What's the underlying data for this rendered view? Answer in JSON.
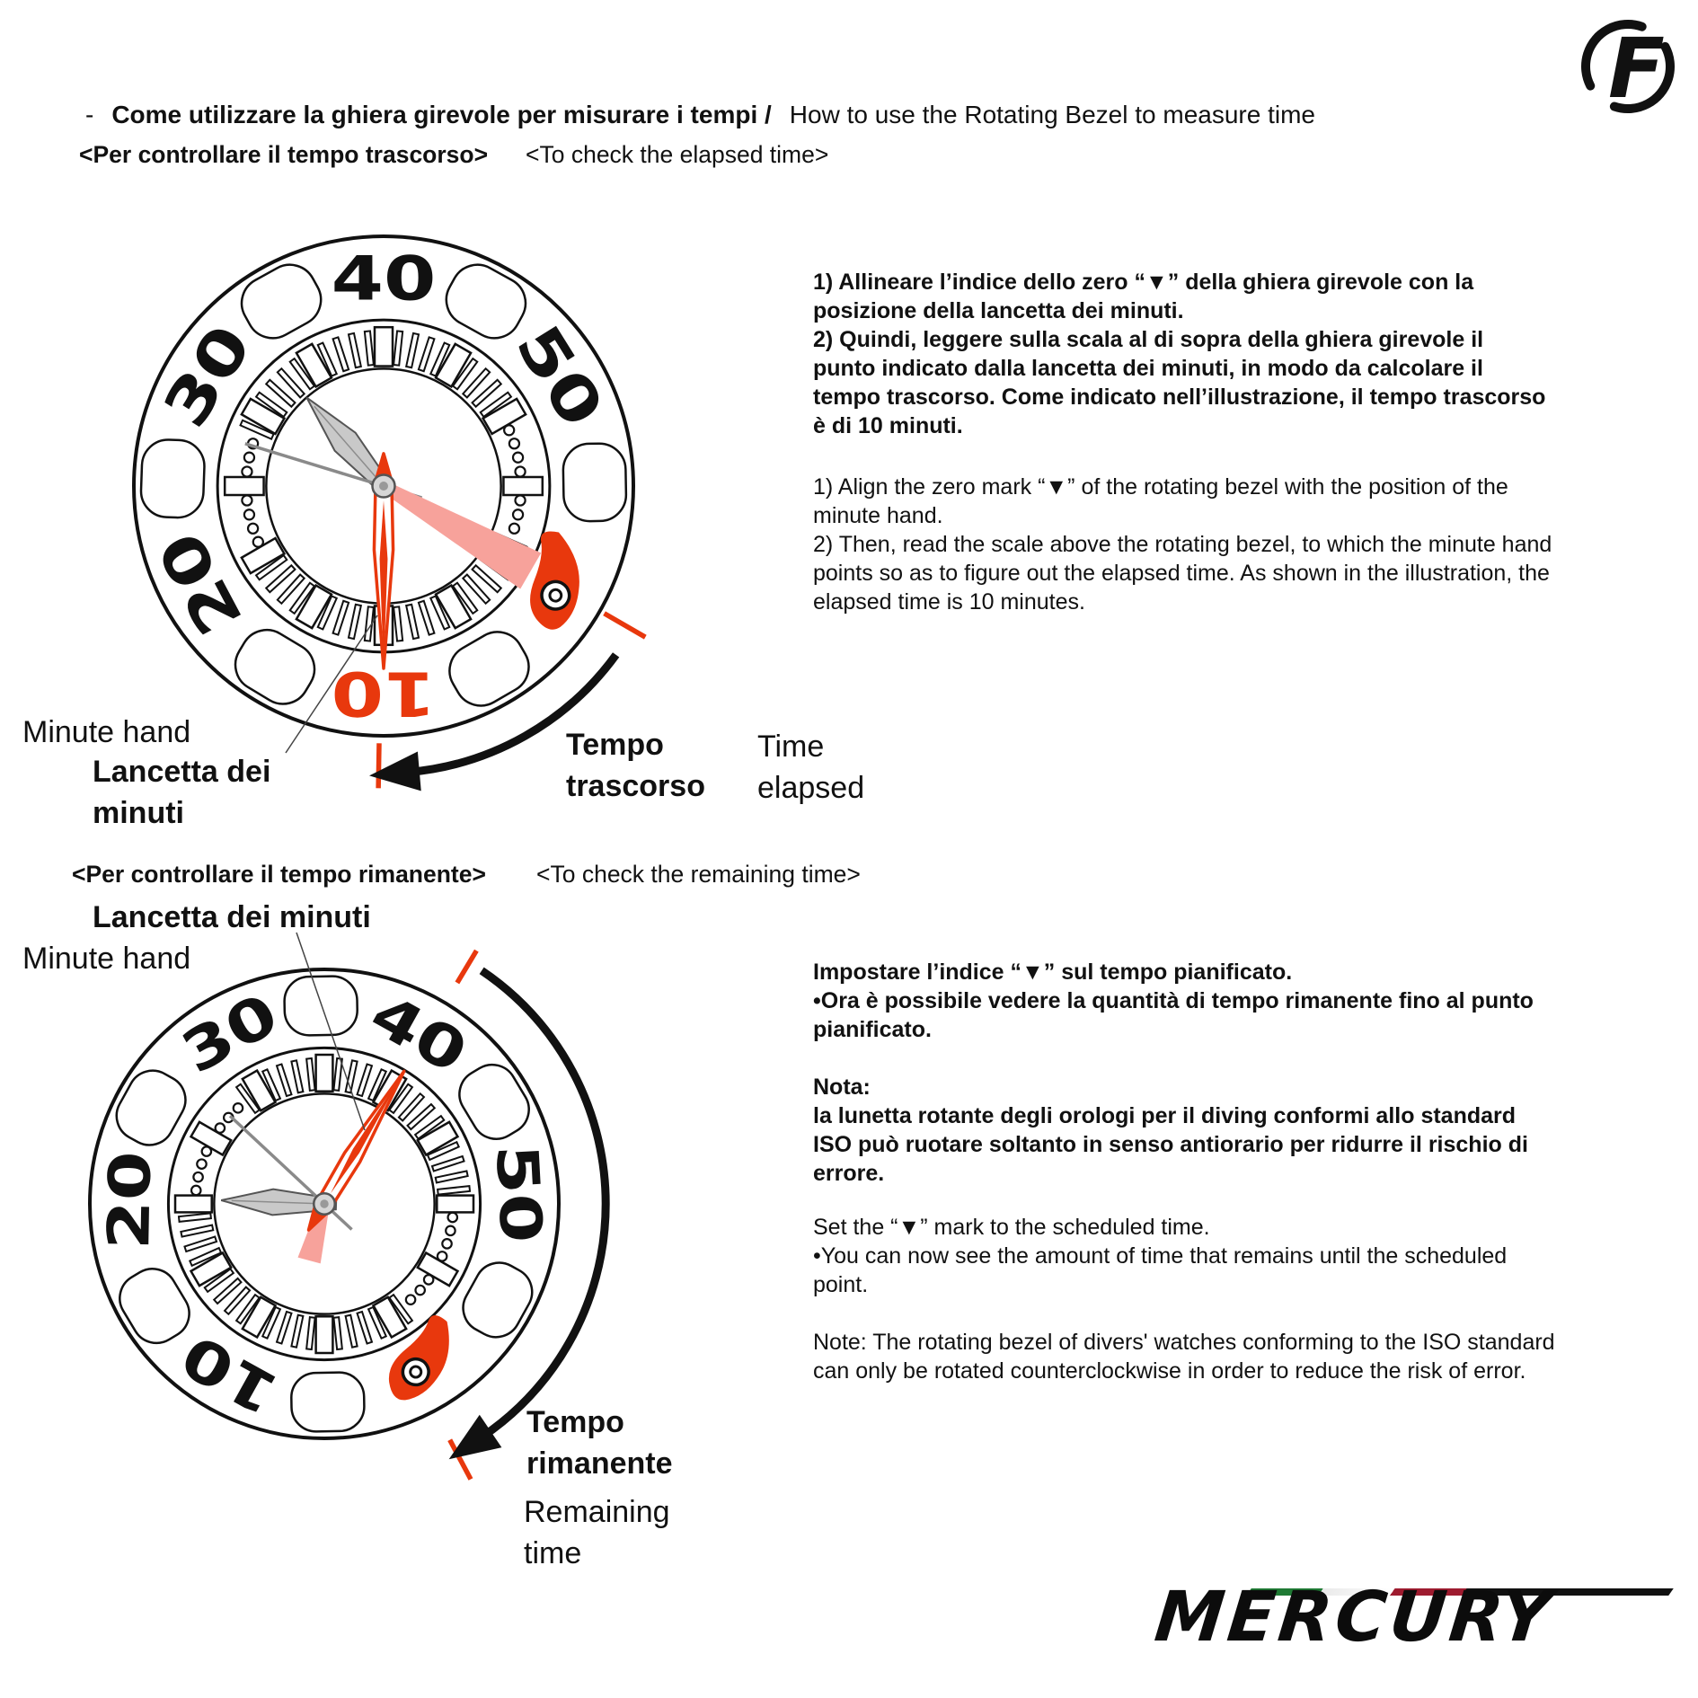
{
  "colors": {
    "red": "#E8380D",
    "pink": "#F7A29B",
    "ink": "#111111"
  },
  "header": {
    "dash": "-",
    "title_it": "Come utilizzare la ghiera girevole per misurare i tempi /",
    "title_en": "How to use the Rotating Bezel to measure time",
    "logo_letter": "F"
  },
  "elapsed_section": {
    "heading_it": "<Per controllare il tempo trascorso>",
    "heading_en": "<To check the elapsed time>",
    "body_it": "1) Allineare l’indice dello zero “▼” della ghiera girevole con la\nposizione della lancetta dei minuti.\n2) Quindi, leggere sulla scala al di sopra della ghiera girevole il\npunto indicato dalla lancetta dei minuti, in modo da calcolare il\ntempo trascorso. Come indicato nell’illustrazione, il tempo trascorso\nè di 10 minuti.",
    "body_en": "1) Align the zero mark “▼” of the rotating bezel with the position of the\nminute hand.\n2) Then, read the scale above the rotating bezel, to which the minute hand\npoints so as to figure out the elapsed time. As shown in the illustration, the\nelapsed time is 10 minutes.",
    "label_minute_hand_en": "Minute hand",
    "label_minute_hand_it": "Lancetta dei\nminuti",
    "label_elapsed_it": "Tempo\ntrascorso",
    "label_elapsed_en": "Time\nelapsed"
  },
  "remaining_section": {
    "heading_it": "<Per controllare il tempo rimanente>",
    "heading_en": "<To check the remaining time>",
    "body_it": "Impostare l’indice “▼” sul tempo pianificato.\n•Ora è possibile vedere la quantità di tempo rimanente fino al punto\npianificato.\n\nNota:\nla lunetta rotante degli orologi per il diving conformi allo standard\nISO può ruotare soltanto in senso antiorario per ridurre il rischio di\nerrore.",
    "body_en": "Set the “▼” mark to the scheduled time.\n•You can now see the amount of time that remains until the scheduled\npoint.\n\nNote: The rotating bezel of divers' watches conforming to the ISO standard\ncan only be rotated counterclockwise in order to reduce the risk of error.",
    "label_minute_hand_it": "Lancetta dei minuti",
    "label_minute_hand_en": "Minute hand",
    "label_remaining_it": "Tempo\nrimanente",
    "label_remaining_en": "Remaining\ntime"
  },
  "figures": {
    "watch1": {
      "bezel_labels": [
        "40",
        "50",
        "10",
        "20",
        "30"
      ],
      "red_label_index": 2
    },
    "watch2": {
      "bezel_labels": [
        "40",
        "50",
        "10",
        "20",
        "30"
      ],
      "red_label_index": -1
    }
  },
  "footer": {
    "brand": "MERCURY"
  }
}
